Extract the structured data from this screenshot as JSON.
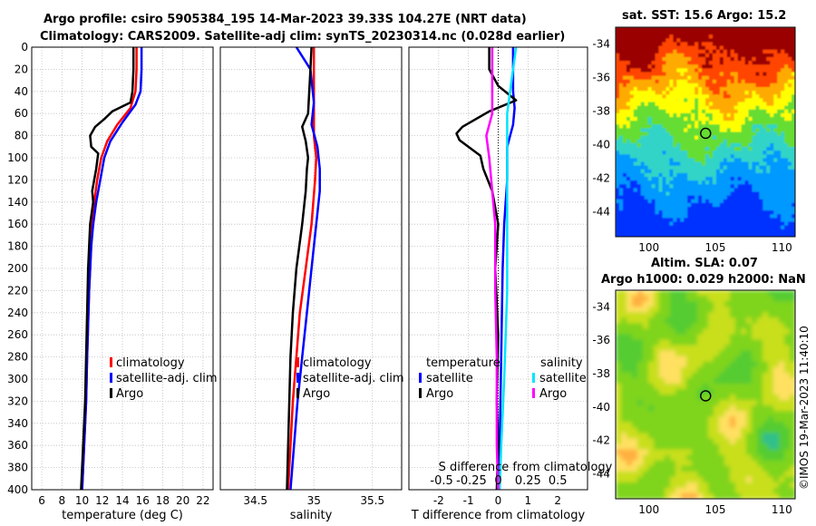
{
  "titles": {
    "line1": "Argo profile: csiro 5905384_195 14-Mar-2023 39.33S 104.27E (NRT data)",
    "line2": "Climatology: CARS2009. Satellite-adj clim: synTS_20230314.nc (0.028d earlier)",
    "map1": "sat. SST: 15.6 Argo: 15.2",
    "map2a": "Altim. SLA: 0.07",
    "map2b": "Argo h1000: 0.029 h2000: NaN",
    "side": "©IMOS 19-Mar-2023 11:40:10"
  },
  "colors": {
    "climatology": "#ff0000",
    "satellite": "#0000ff",
    "argo": "#000000",
    "sat_cyan": "#00e5ff",
    "argo_magenta": "#ff00ff"
  },
  "chart_data": [
    {
      "type": "line",
      "title": "",
      "xlabel": "temperature (deg C)",
      "ylabel": "",
      "xlim": [
        5,
        23
      ],
      "ylim": [
        400,
        0
      ],
      "xticks": [
        6,
        8,
        10,
        12,
        14,
        16,
        18,
        20,
        22
      ],
      "yticks": [
        0,
        20,
        40,
        60,
        80,
        100,
        120,
        140,
        160,
        180,
        200,
        220,
        240,
        260,
        280,
        300,
        320,
        340,
        360,
        380,
        400
      ],
      "grid": true,
      "legend": [
        "climatology",
        "satellite-adj. clim",
        "Argo"
      ],
      "series": [
        {
          "name": "climatology",
          "color": "#ff0000",
          "points": [
            [
              15.4,
              0
            ],
            [
              15.4,
              20
            ],
            [
              15.3,
              40
            ],
            [
              14.8,
              55
            ],
            [
              13.5,
              70
            ],
            [
              12.5,
              85
            ],
            [
              11.9,
              100
            ],
            [
              11.5,
              120
            ],
            [
              11.2,
              140
            ],
            [
              11.0,
              160
            ],
            [
              10.9,
              180
            ],
            [
              10.7,
              220
            ],
            [
              10.5,
              280
            ],
            [
              10.4,
              320
            ],
            [
              10.2,
              360
            ],
            [
              10.0,
              400
            ]
          ]
        },
        {
          "name": "satellite-adj. clim",
          "color": "#0000ff",
          "points": [
            [
              15.9,
              0
            ],
            [
              15.9,
              20
            ],
            [
              15.8,
              40
            ],
            [
              15.3,
              52
            ],
            [
              14.0,
              68
            ],
            [
              12.8,
              85
            ],
            [
              12.2,
              100
            ],
            [
              11.8,
              120
            ],
            [
              11.4,
              140
            ],
            [
              11.1,
              160
            ],
            [
              10.9,
              180
            ],
            [
              10.7,
              220
            ],
            [
              10.5,
              280
            ],
            [
              10.4,
              320
            ],
            [
              10.2,
              360
            ],
            [
              10.0,
              400
            ]
          ]
        },
        {
          "name": "Argo",
          "color": "#000000",
          "points": [
            [
              15.1,
              0
            ],
            [
              15.1,
              20
            ],
            [
              15.0,
              40
            ],
            [
              14.8,
              50
            ],
            [
              13.0,
              58
            ],
            [
              12.2,
              65
            ],
            [
              11.3,
              72
            ],
            [
              10.8,
              80
            ],
            [
              10.9,
              90
            ],
            [
              11.6,
              96
            ],
            [
              11.4,
              110
            ],
            [
              11.0,
              130
            ],
            [
              11.1,
              140
            ],
            [
              10.8,
              160
            ],
            [
              10.7,
              180
            ],
            [
              10.6,
              200
            ],
            [
              10.5,
              240
            ],
            [
              10.4,
              280
            ],
            [
              10.3,
              320
            ],
            [
              10.1,
              360
            ],
            [
              9.9,
              400
            ]
          ]
        }
      ]
    },
    {
      "type": "line",
      "xlabel": "salinity",
      "xlim": [
        34.2,
        35.75
      ],
      "ylim": [
        400,
        0
      ],
      "xticks": [
        34.5,
        35,
        35.5
      ],
      "grid": true,
      "legend": [
        "climatology",
        "satellite-adj. clim",
        "Argo"
      ],
      "series": [
        {
          "name": "climatology",
          "color": "#ff0000",
          "points": [
            [
              35.0,
              0
            ],
            [
              35.0,
              20
            ],
            [
              35.0,
              40
            ],
            [
              35.0,
              60
            ],
            [
              35.0,
              80
            ],
            [
              35.02,
              100
            ],
            [
              35.01,
              120
            ],
            [
              34.98,
              160
            ],
            [
              34.93,
              200
            ],
            [
              34.88,
              240
            ],
            [
              34.85,
              280
            ],
            [
              34.82,
              320
            ],
            [
              34.8,
              360
            ],
            [
              34.78,
              400
            ]
          ]
        },
        {
          "name": "satellite-adj. clim",
          "color": "#0000ff",
          "points": [
            [
              34.85,
              0
            ],
            [
              34.97,
              20
            ],
            [
              35.0,
              50
            ],
            [
              34.98,
              70
            ],
            [
              35.03,
              90
            ],
            [
              35.05,
              110
            ],
            [
              35.05,
              130
            ],
            [
              35.02,
              160
            ],
            [
              34.98,
              200
            ],
            [
              34.94,
              240
            ],
            [
              34.9,
              280
            ],
            [
              34.86,
              320
            ],
            [
              34.83,
              360
            ],
            [
              34.8,
              400
            ]
          ]
        },
        {
          "name": "Argo",
          "color": "#000000",
          "points": [
            [
              34.98,
              0
            ],
            [
              34.97,
              20
            ],
            [
              34.96,
              40
            ],
            [
              34.95,
              60
            ],
            [
              34.9,
              72
            ],
            [
              34.93,
              85
            ],
            [
              34.95,
              100
            ],
            [
              34.94,
              110
            ],
            [
              34.93,
              130
            ],
            [
              34.9,
              160
            ],
            [
              34.85,
              200
            ],
            [
              34.82,
              240
            ],
            [
              34.8,
              280
            ],
            [
              34.79,
              320
            ],
            [
              34.78,
              360
            ],
            [
              34.77,
              400
            ]
          ]
        }
      ]
    },
    {
      "type": "line",
      "xlabel": "T difference from climatology",
      "top_label": "S difference from climatology",
      "xlim": [
        -3,
        3
      ],
      "ylim": [
        400,
        0
      ],
      "xticks": [
        -2,
        -1,
        0,
        1,
        2
      ],
      "top_ticks": [
        [
          "-0.5",
          -1.9
        ],
        [
          "-0.25",
          -0.9
        ],
        [
          "0",
          0
        ],
        [
          "0.25",
          1.0
        ],
        [
          "0.5",
          2.0
        ]
      ],
      "grid": true,
      "legend_left": [
        "temperature",
        "satellite",
        "Argo"
      ],
      "legend_right": [
        "salinity",
        "satellite",
        "Argo"
      ],
      "series": [
        {
          "name": "temperature satellite",
          "color": "#0000ff",
          "points": [
            [
              0.5,
              0
            ],
            [
              0.5,
              20
            ],
            [
              0.5,
              40
            ],
            [
              0.55,
              55
            ],
            [
              0.5,
              70
            ],
            [
              0.3,
              90
            ],
            [
              0.3,
              120
            ],
            [
              0.2,
              160
            ],
            [
              0.15,
              200
            ],
            [
              0.1,
              280
            ],
            [
              0.05,
              360
            ],
            [
              0.0,
              400
            ]
          ]
        },
        {
          "name": "temperature Argo",
          "color": "#000000",
          "points": [
            [
              -0.3,
              0
            ],
            [
              -0.3,
              20
            ],
            [
              0.0,
              35
            ],
            [
              0.6,
              48
            ],
            [
              -0.3,
              58
            ],
            [
              -1.2,
              72
            ],
            [
              -1.4,
              78
            ],
            [
              -1.3,
              84
            ],
            [
              -0.6,
              98
            ],
            [
              -0.5,
              110
            ],
            [
              -0.2,
              130
            ],
            [
              0.0,
              160
            ],
            [
              -0.1,
              200
            ],
            [
              0.0,
              260
            ],
            [
              -0.05,
              320
            ],
            [
              0.0,
              360
            ],
            [
              -0.05,
              400
            ]
          ]
        },
        {
          "name": "salinity satellite",
          "color": "#00e5ff",
          "points": [
            [
              0.6,
              0
            ],
            [
              0.5,
              20
            ],
            [
              0.4,
              40
            ],
            [
              0.3,
              60
            ],
            [
              0.3,
              100
            ],
            [
              0.3,
              140
            ],
            [
              0.3,
              200
            ],
            [
              0.3,
              220
            ],
            [
              0.2,
              300
            ],
            [
              0.1,
              360
            ],
            [
              0.05,
              400
            ]
          ]
        },
        {
          "name": "salinity Argo",
          "color": "#ff00ff",
          "points": [
            [
              -0.2,
              0
            ],
            [
              -0.2,
              20
            ],
            [
              -0.2,
              40
            ],
            [
              -0.2,
              60
            ],
            [
              -0.4,
              80
            ],
            [
              -0.3,
              100
            ],
            [
              -0.2,
              130
            ],
            [
              -0.1,
              160
            ],
            [
              -0.1,
              220
            ],
            [
              -0.05,
              280
            ],
            [
              -0.05,
              360
            ],
            [
              0.0,
              400
            ]
          ]
        }
      ]
    },
    {
      "type": "heatmap",
      "title": "sat. SST: 15.6 Argo: 15.2",
      "xlim": [
        97.5,
        111
      ],
      "ylim": [
        -45.5,
        -33
      ],
      "xticks": [
        100,
        105,
        110
      ],
      "yticks": [
        -34,
        -36,
        -38,
        -40,
        -42,
        -44
      ],
      "argo_position": [
        104.27,
        -39.33
      ]
    },
    {
      "type": "heatmap",
      "title": "Altim. SLA: 0.07",
      "subtitle": "Argo h1000: 0.029 h2000: NaN",
      "xlim": [
        97.5,
        111
      ],
      "ylim": [
        -45.5,
        -33
      ],
      "xticks": [
        100,
        105,
        110
      ],
      "yticks": [
        -34,
        -36,
        -38,
        -40,
        -42,
        -44
      ],
      "argo_position": [
        104.27,
        -39.33
      ]
    }
  ]
}
